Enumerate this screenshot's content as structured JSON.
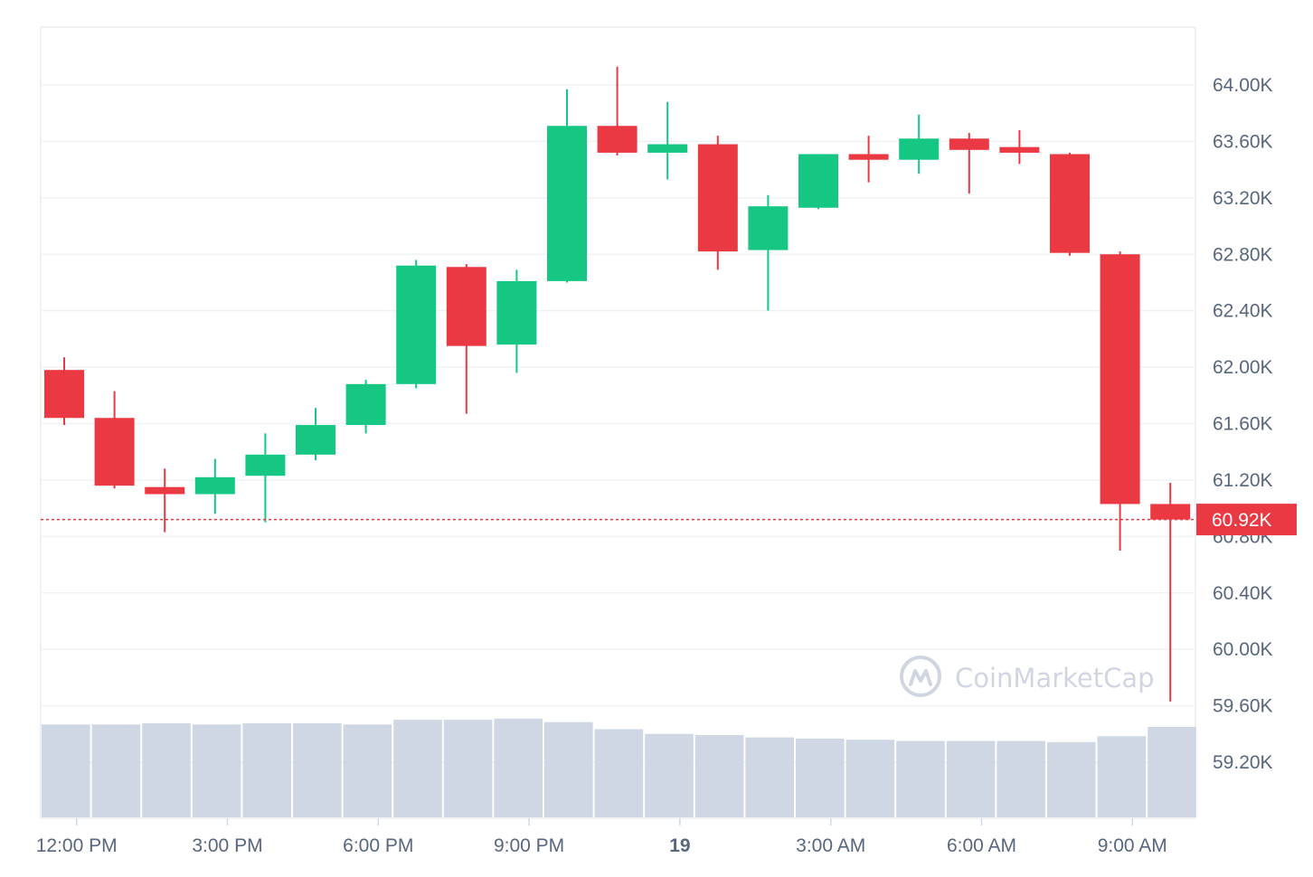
{
  "chart_data": {
    "type": "candlestick",
    "y_axis": {
      "ticks": [
        59.2,
        59.6,
        60.0,
        60.4,
        60.8,
        61.2,
        61.6,
        62.0,
        62.4,
        62.8,
        63.2,
        63.6,
        64.0
      ],
      "tick_labels": [
        "59.20K",
        "59.60K",
        "60.00K",
        "60.40K",
        "60.80K",
        "61.20K",
        "61.60K",
        "62.00K",
        "62.40K",
        "62.80K",
        "63.20K",
        "63.60K",
        "64.00K"
      ],
      "unit": "K",
      "range": [
        58.8,
        64.45
      ]
    },
    "x_axis": {
      "tick_labels": [
        "12:00 PM",
        "3:00 PM",
        "6:00 PM",
        "9:00 PM",
        "19",
        "3:00 AM",
        "6:00 AM",
        "9:00 AM"
      ],
      "tick_candle_positions": [
        0.3,
        3.3,
        6.3,
        9.3,
        12.3,
        15.3,
        18.3,
        21.3
      ],
      "bold_labels": [
        "19"
      ]
    },
    "current_price": {
      "value": 60.92,
      "label": "60.92K"
    },
    "candles": [
      {
        "open": 61.98,
        "high": 62.07,
        "low": 61.59,
        "close": 61.64
      },
      {
        "open": 61.64,
        "high": 61.83,
        "low": 61.14,
        "close": 61.16
      },
      {
        "open": 61.15,
        "high": 61.28,
        "low": 60.83,
        "close": 61.1
      },
      {
        "open": 61.1,
        "high": 61.35,
        "low": 60.96,
        "close": 61.22
      },
      {
        "open": 61.23,
        "high": 61.53,
        "low": 60.9,
        "close": 61.38
      },
      {
        "open": 61.38,
        "high": 61.71,
        "low": 61.34,
        "close": 61.59
      },
      {
        "open": 61.59,
        "high": 61.91,
        "low": 61.53,
        "close": 61.88
      },
      {
        "open": 61.88,
        "high": 62.76,
        "low": 61.85,
        "close": 62.72
      },
      {
        "open": 62.71,
        "high": 62.73,
        "low": 61.67,
        "close": 62.15
      },
      {
        "open": 62.16,
        "high": 62.69,
        "low": 61.96,
        "close": 62.61
      },
      {
        "open": 62.61,
        "high": 63.97,
        "low": 62.6,
        "close": 63.71
      },
      {
        "open": 63.71,
        "high": 64.13,
        "low": 63.5,
        "close": 63.52
      },
      {
        "open": 63.52,
        "high": 63.88,
        "low": 63.33,
        "close": 63.58
      },
      {
        "open": 63.58,
        "high": 63.64,
        "low": 62.69,
        "close": 62.82
      },
      {
        "open": 62.83,
        "high": 63.22,
        "low": 62.4,
        "close": 63.14
      },
      {
        "open": 63.13,
        "high": 63.51,
        "low": 63.12,
        "close": 63.51
      },
      {
        "open": 63.51,
        "high": 63.64,
        "low": 63.31,
        "close": 63.47
      },
      {
        "open": 63.47,
        "high": 63.79,
        "low": 63.37,
        "close": 63.62
      },
      {
        "open": 63.62,
        "high": 63.66,
        "low": 63.23,
        "close": 63.54
      },
      {
        "open": 63.56,
        "high": 63.68,
        "low": 63.44,
        "close": 63.52
      },
      {
        "open": 63.51,
        "high": 63.52,
        "low": 62.79,
        "close": 62.81
      },
      {
        "open": 62.8,
        "high": 62.82,
        "low": 60.7,
        "close": 61.03
      },
      {
        "open": 61.03,
        "high": 61.18,
        "low": 59.63,
        "close": 60.92
      }
    ],
    "volume": {
      "values": [
        0.79,
        0.79,
        0.8,
        0.79,
        0.8,
        0.8,
        0.79,
        0.83,
        0.83,
        0.84,
        0.81,
        0.75,
        0.71,
        0.7,
        0.68,
        0.67,
        0.66,
        0.65,
        0.65,
        0.65,
        0.64,
        0.69,
        0.77
      ],
      "max_relative": 1.0
    },
    "colors": {
      "up": "#16c784",
      "down": "#ea3943",
      "volume": "#cfd6e4",
      "grid": "#eff2f5",
      "axis_text": "#58667e",
      "current_price_line": "#ea3943",
      "watermark": "#cfd5e1"
    }
  },
  "watermark": {
    "text": "CoinMarketCap",
    "icon": "coinmarketcap-logo-icon"
  }
}
